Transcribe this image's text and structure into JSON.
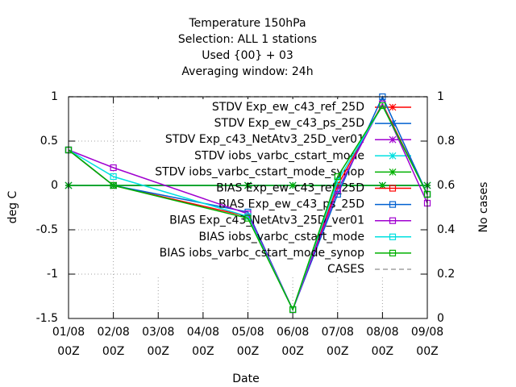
{
  "chart_data": {
    "type": "line",
    "title": [
      "Temperature 150hPa",
      "Selection: ALL      1 stations",
      "Used {00} + 03",
      "Averaging window: 24h"
    ],
    "xlabel": "Date",
    "ylabel": "deg C",
    "y2label": "No cases",
    "x": [
      1,
      2,
      5,
      6,
      7,
      8,
      9
    ],
    "xlim": [
      1,
      9
    ],
    "xticks": [
      {
        "value": 1,
        "label": "01/08",
        "sublabel": "00Z"
      },
      {
        "value": 2,
        "label": "02/08",
        "sublabel": "00Z"
      },
      {
        "value": 3,
        "label": "03/08",
        "sublabel": "00Z"
      },
      {
        "value": 4,
        "label": "04/08",
        "sublabel": "00Z"
      },
      {
        "value": 5,
        "label": "05/08",
        "sublabel": "00Z"
      },
      {
        "value": 6,
        "label": "06/08",
        "sublabel": "00Z"
      },
      {
        "value": 7,
        "label": "07/08",
        "sublabel": "00Z"
      },
      {
        "value": 8,
        "label": "08/08",
        "sublabel": "00Z"
      },
      {
        "value": 9,
        "label": "09/08",
        "sublabel": "00Z"
      }
    ],
    "ylim": [
      -1.5,
      1
    ],
    "yticks": [
      -1.5,
      -1,
      -0.5,
      0,
      0.5,
      1
    ],
    "y2lim": [
      0,
      1
    ],
    "y2ticks": [
      0,
      0.2,
      0.4,
      0.6,
      0.8,
      1
    ],
    "grid": true,
    "legend": "top-right",
    "series": [
      {
        "name": "STDV Exp_ew_c43_ref_25D",
        "color": "#ff0000",
        "marker": "star",
        "values": [
          0,
          0,
          0,
          0,
          0,
          0,
          0
        ]
      },
      {
        "name": "STDV Exp_ew_c43_ps_25D",
        "color": "#0060d0",
        "marker": "star",
        "values": [
          0,
          0,
          0,
          0,
          0,
          0,
          0
        ]
      },
      {
        "name": "STDV Exp_c43_NetAtv3_25D_ver01",
        "color": "#a000d0",
        "marker": "star",
        "values": [
          0,
          0,
          0,
          0,
          0,
          0,
          0
        ]
      },
      {
        "name": "STDV iobs_varbc_cstart_mode",
        "color": "#00e0e0",
        "marker": "star",
        "values": [
          0,
          0,
          0,
          0,
          0,
          0,
          0
        ]
      },
      {
        "name": "STDV iobs_varbc_cstart_mode_synop",
        "color": "#00b000",
        "marker": "star",
        "values": [
          0,
          0,
          0,
          0,
          0,
          0,
          0
        ]
      },
      {
        "name": "BIAS Exp_ew_c43_ref_25D",
        "color": "#ff0000",
        "marker": "square",
        "values": [
          0.4,
          0,
          -0.35,
          -1.4,
          0,
          0.92,
          -0.1
        ]
      },
      {
        "name": "BIAS Exp_ew_c43_ps_25D",
        "color": "#0060d0",
        "marker": "square",
        "values": [
          0.4,
          0,
          -0.3,
          -1.4,
          -0.1,
          1,
          -0.1
        ]
      },
      {
        "name": "BIAS Exp_c43_NetAtv3_25D_ver01",
        "color": "#a000d0",
        "marker": "square",
        "values": [
          0.4,
          0.2,
          -0.32,
          -1.4,
          -0.05,
          0.92,
          -0.2
        ]
      },
      {
        "name": "BIAS iobs_varbc_cstart_mode",
        "color": "#00e0e0",
        "marker": "square",
        "values": [
          0.4,
          0.1,
          -0.35,
          -1.4,
          0.05,
          0.9,
          -0.1
        ]
      },
      {
        "name": "BIAS iobs_varbc_cstart_mode_synop",
        "color": "#00b000",
        "marker": "square",
        "values": [
          0.4,
          0,
          -0.37,
          -1.4,
          0.1,
          0.9,
          -0.1
        ]
      },
      {
        "name": "CASES",
        "color": "#a0a0a0",
        "marker": "none",
        "dashed": true,
        "axis": "y2",
        "values": [
          1,
          1,
          1,
          1,
          1,
          1,
          1
        ]
      }
    ]
  }
}
